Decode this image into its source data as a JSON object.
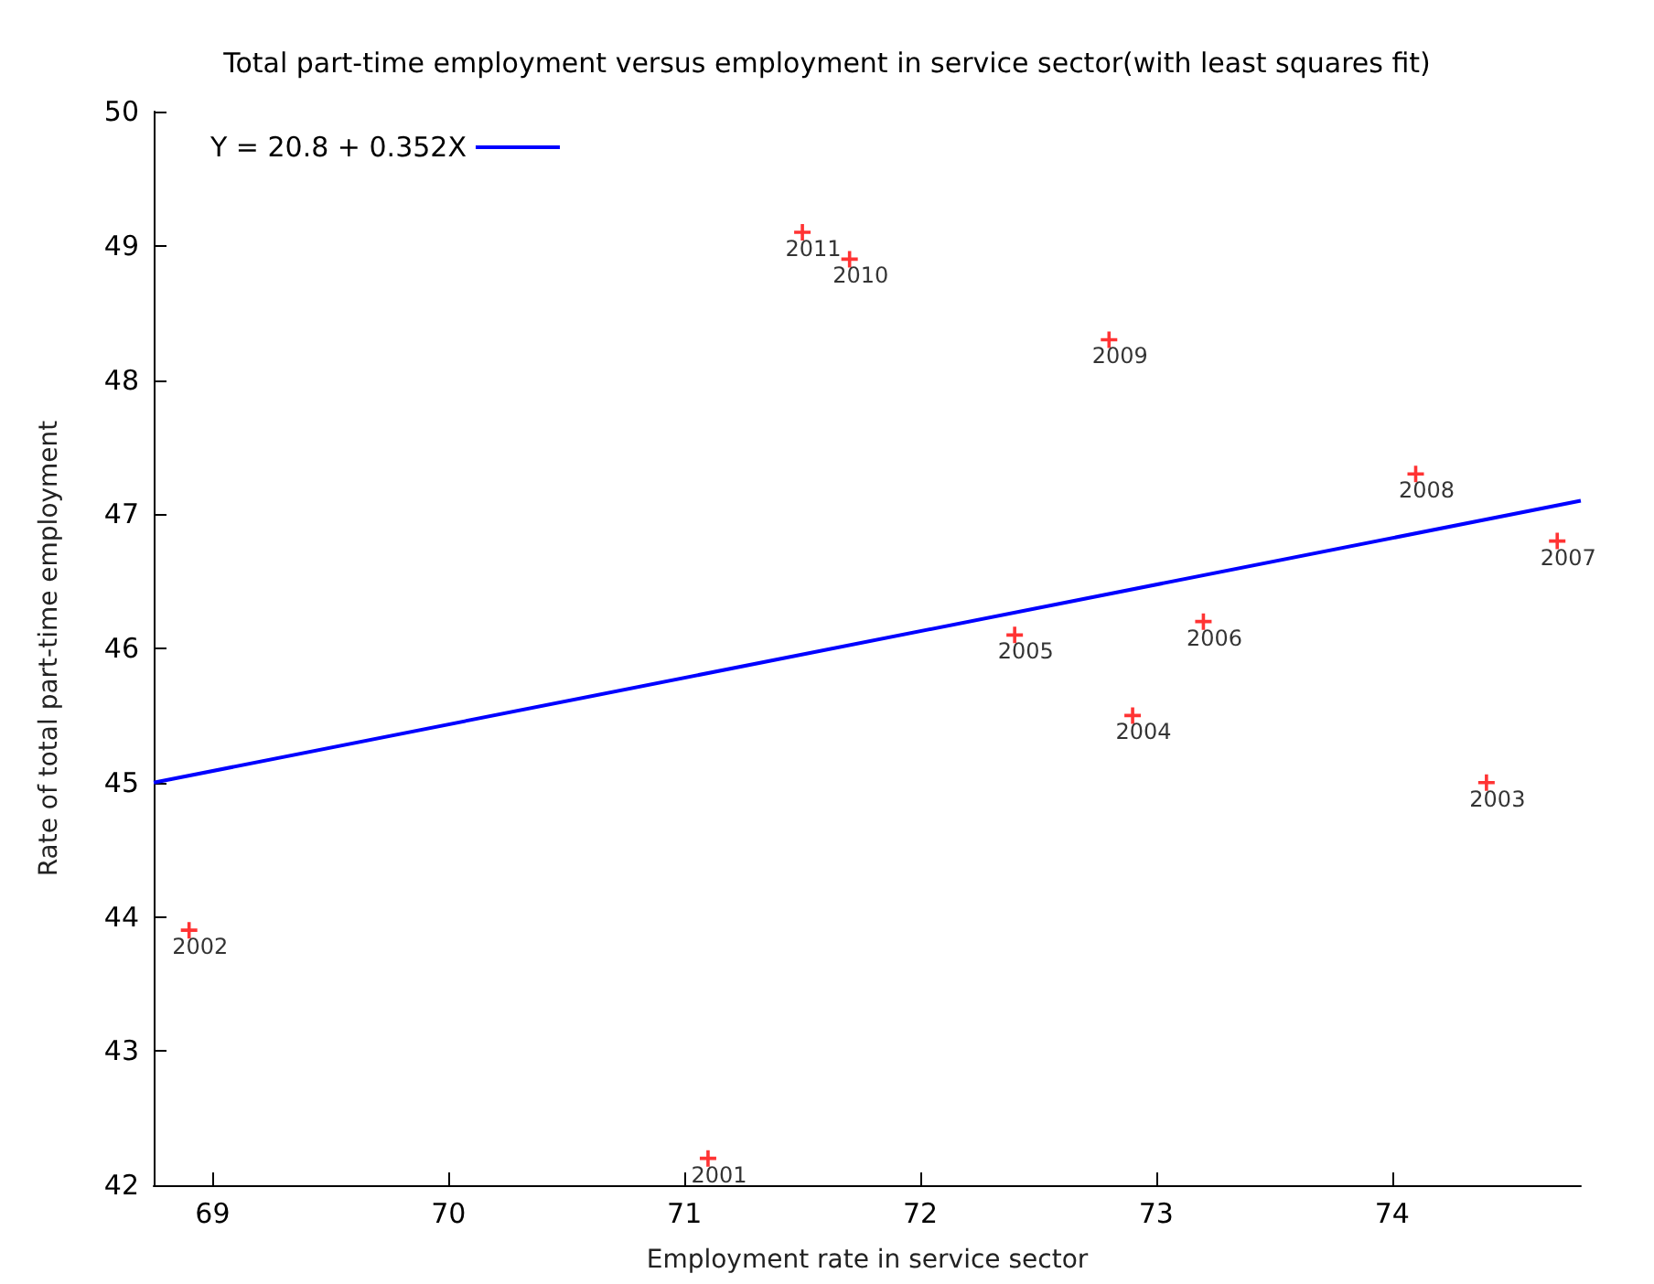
{
  "chart_data": {
    "type": "scatter",
    "title": "Total part-time employment versus employment in service sector(with least squares fit)",
    "xlabel": "Employment rate in service sector",
    "ylabel": "Rate of total part-time employment",
    "xlim": [
      68.75,
      74.8
    ],
    "xticks": [
      69,
      70,
      71,
      72,
      73,
      74
    ],
    "ylim": [
      42,
      50
    ],
    "yticks": [
      42,
      43,
      44,
      45,
      46,
      47,
      48,
      49,
      50
    ],
    "grid": false,
    "legend": "top left",
    "series": [
      {
        "color": "#ff0000",
        "marker": "cross",
        "x": [
          71.1,
          68.9,
          74.4,
          72.9,
          72.4,
          73.2,
          74.7,
          74.1,
          72.8,
          71.7,
          71.5
        ],
        "values": [
          42.2,
          43.9,
          45.0,
          45.5,
          46.1,
          46.2,
          46.8,
          47.3,
          48.3,
          48.9,
          49.1
        ]
      },
      {
        "type": "line",
        "name": "Y = 20.8 + 0.352X",
        "color": "#0000ff",
        "marker": "none",
        "line_style": "solid",
        "x": [
          68.75,
          74.8
        ],
        "values": [
          45.0,
          47.1
        ]
      }
    ],
    "annotations": [
      {
        "text": "2001",
        "x": 71.1,
        "y": 42.2
      },
      {
        "text": "2002",
        "x": 68.9,
        "y": 43.9
      },
      {
        "text": "2003",
        "x": 74.4,
        "y": 45.0
      },
      {
        "text": "2004",
        "x": 72.9,
        "y": 45.5
      },
      {
        "text": "2005",
        "x": 72.4,
        "y": 46.1
      },
      {
        "text": "2006",
        "x": 73.2,
        "y": 46.2
      },
      {
        "text": "2007",
        "x": 74.7,
        "y": 46.8
      },
      {
        "text": "2008",
        "x": 74.1,
        "y": 47.3
      },
      {
        "text": "2009",
        "x": 72.8,
        "y": 48.3
      },
      {
        "text": "2010",
        "x": 71.7,
        "y": 48.9
      },
      {
        "text": "2011",
        "x": 71.5,
        "y": 49.1
      }
    ]
  }
}
